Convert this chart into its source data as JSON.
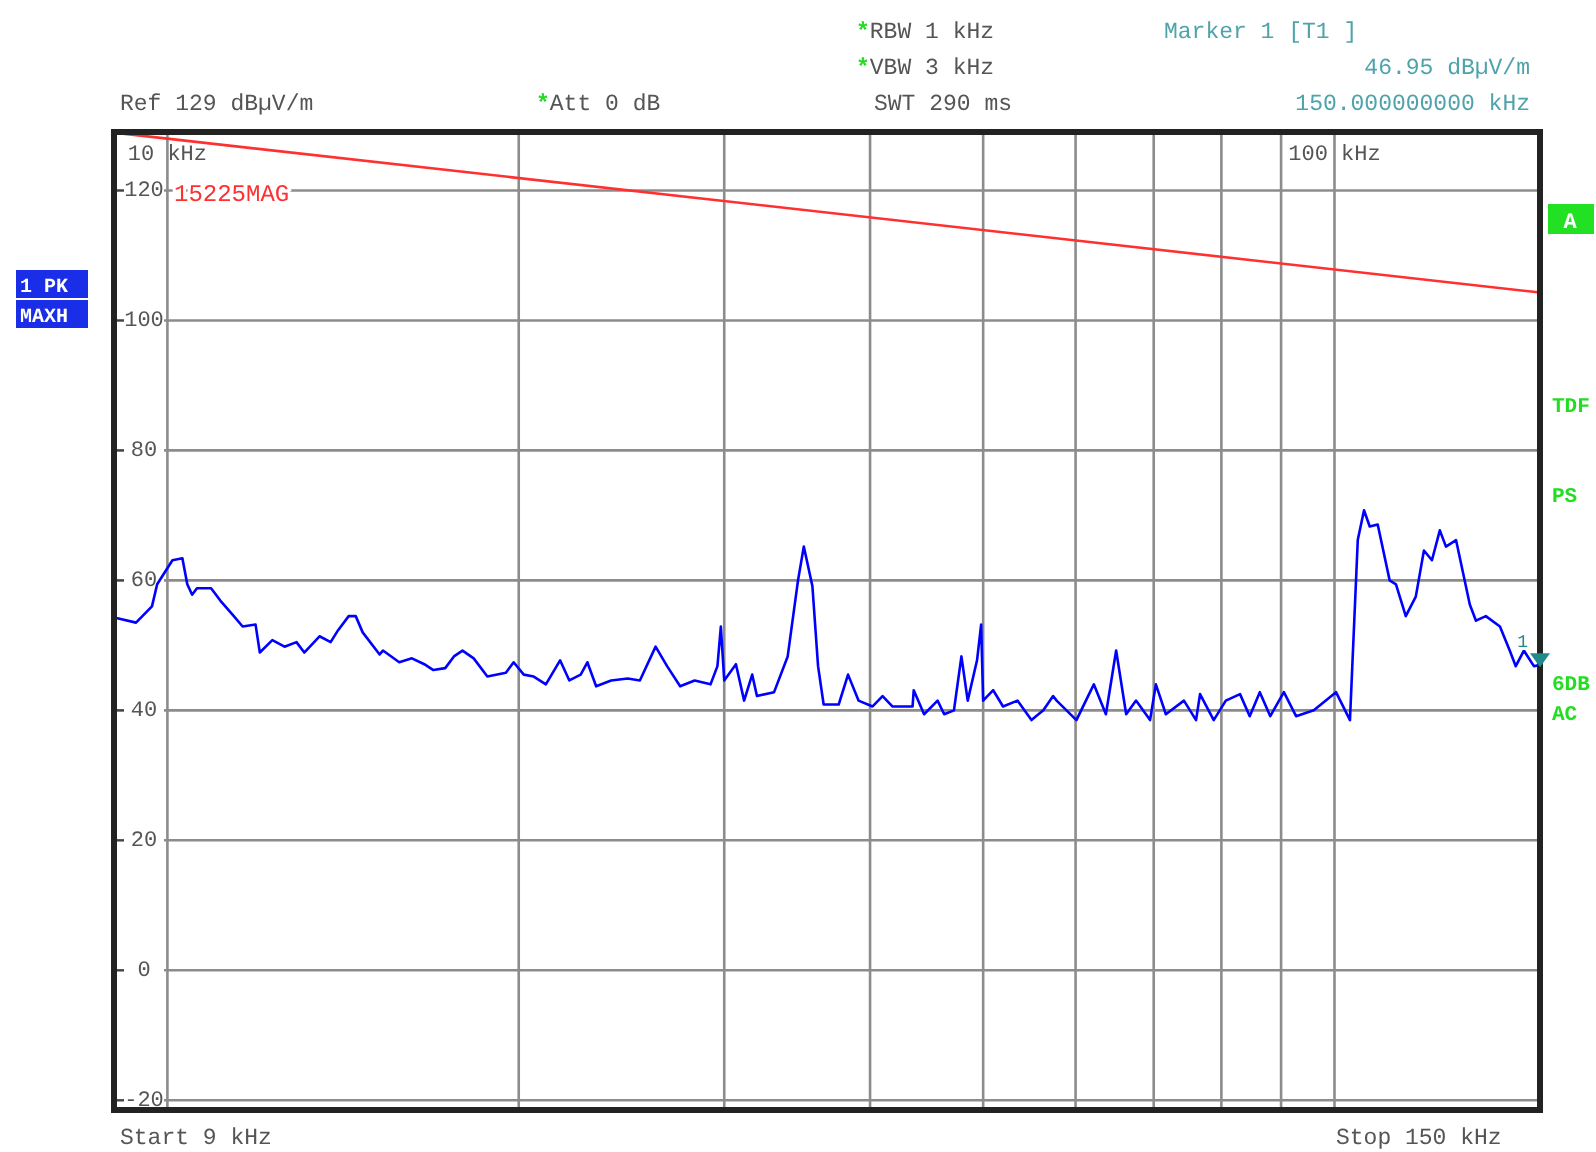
{
  "chart_data": {
    "type": "line",
    "log": "x",
    "grid": true,
    "marker": "none",
    "line_style": "solid",
    "xlim": [
      9,
      150
    ],
    "ylim": [
      -21.5,
      129
    ],
    "xticks": [
      {
        "value": 10,
        "label": "10 kHz"
      },
      {
        "value": 20,
        "label": null
      },
      {
        "value": 30,
        "label": null
      },
      {
        "value": 40,
        "label": null
      },
      {
        "value": 50,
        "label": null
      },
      {
        "value": 60,
        "label": null
      },
      {
        "value": 70,
        "label": null
      },
      {
        "value": 80,
        "label": null
      },
      {
        "value": 90,
        "label": null
      },
      {
        "value": 100,
        "label": "100 kHz"
      }
    ],
    "yticks": [
      -20,
      0,
      20,
      40,
      60,
      80,
      100,
      120
    ],
    "series": [
      {
        "color": "#0000ff",
        "x": [
          9.04,
          9.4,
          9.7,
          9.8,
          10.1,
          10.3,
          10.4,
          10.5,
          10.6,
          10.9,
          11.1,
          11.4,
          11.6,
          11.9,
          12.0,
          12.3,
          12.6,
          12.9,
          13.1,
          13.5,
          13.8,
          14.0,
          14.3,
          14.5,
          14.7,
          15.2,
          15.3,
          15.8,
          16.2,
          16.6,
          16.9,
          17.3,
          17.6,
          17.9,
          18.3,
          18.8,
          19.5,
          19.8,
          20.2,
          20.6,
          21.1,
          21.7,
          22.1,
          22.6,
          22.9,
          23.3,
          24.0,
          24.8,
          25.4,
          26.2,
          26.8,
          27.5,
          28.3,
          29.2,
          29.6,
          29.8,
          30.0,
          30.7,
          31.2,
          31.7,
          32.0,
          33.1,
          34.0,
          34.7,
          35.1,
          35.7,
          36.1,
          36.5,
          37.6,
          38.3,
          39.1,
          40.2,
          41.0,
          41.8,
          43.5,
          43.6,
          44.5,
          45.7,
          46.3,
          47.2,
          47.9,
          48.5,
          49.4,
          49.8,
          50.0,
          51.0,
          52.0,
          53.5,
          55.0,
          56.3,
          57.4,
          57.8,
          60.1,
          62.2,
          63.7,
          65.0,
          66.3,
          67.6,
          69.5,
          70.3,
          71.7,
          74.3,
          76.1,
          76.7,
          78.8,
          80.7,
          83.0,
          84.6,
          86.3,
          88.1,
          90.5,
          92.7,
          96.0,
          100.3,
          103.1,
          104.7,
          106.0,
          107.2,
          108.9,
          111.5,
          112.9,
          115.1,
          117.4,
          119.3,
          121.2,
          123.1,
          124.6,
          127.1,
          130.6,
          132.2,
          134.8,
          138.6,
          141.3,
          143.0,
          145.3,
          148.2,
          150
        ],
        "values": [
          54.2,
          53.5,
          56.0,
          59.4,
          63.1,
          63.4,
          59.4,
          57.8,
          58.8,
          58.8,
          56.9,
          54.5,
          52.9,
          53.2,
          48.9,
          50.8,
          49.8,
          50.5,
          48.9,
          51.4,
          50.5,
          52.3,
          54.5,
          54.5,
          52.0,
          48.6,
          49.2,
          47.4,
          48.0,
          47.1,
          46.2,
          46.5,
          48.3,
          49.2,
          48.0,
          45.2,
          45.8,
          47.4,
          45.5,
          45.2,
          44.0,
          47.7,
          44.6,
          45.5,
          47.4,
          43.7,
          44.6,
          44.9,
          44.6,
          49.8,
          46.8,
          43.7,
          44.6,
          44.0,
          46.8,
          52.9,
          44.6,
          47.1,
          41.5,
          45.5,
          42.2,
          42.8,
          48.3,
          60.0,
          65.2,
          59.1,
          46.8,
          40.9,
          40.9,
          45.5,
          41.5,
          40.6,
          42.2,
          40.6,
          40.6,
          43.1,
          39.4,
          41.5,
          39.4,
          40.0,
          48.3,
          41.5,
          47.7,
          53.2,
          41.5,
          43.1,
          40.6,
          41.5,
          38.5,
          40.0,
          42.2,
          41.5,
          38.5,
          44.0,
          39.4,
          49.2,
          39.4,
          41.5,
          38.5,
          44.0,
          39.4,
          41.5,
          38.5,
          42.5,
          38.5,
          41.5,
          42.5,
          39.1,
          42.8,
          39.1,
          42.8,
          39.1,
          40.0,
          42.8,
          38.5,
          66.2,
          70.8,
          68.3,
          68.6,
          60.0,
          59.4,
          54.5,
          57.5,
          64.6,
          63.1,
          67.7,
          65.2,
          66.2,
          56.3,
          53.8,
          54.5,
          52.9,
          49.2,
          46.8,
          49.2,
          46.8,
          47.0
        ]
      },
      {
        "name": "15225MAG",
        "color": "#ff3030",
        "x": [
          9,
          150
        ],
        "values": [
          128.9,
          104.3
        ]
      }
    ],
    "annotations": [
      "*RBW 1 kHz",
      "*VBW 3 kHz",
      "SWT 290 ms",
      "Ref 129 dBµV/m",
      "*Att 0 dB",
      "Marker 1 [T1 ]",
      "46.95 dBµV/m",
      "150.000000000 kHz",
      "1 PK",
      "MAXH",
      "A",
      "TDF",
      "PS",
      "6DB",
      "AC",
      "Start 9 kHz",
      "Stop 150 kHz",
      {
        "text": "1",
        "x": 150,
        "y": 46.95
      }
    ]
  }
}
